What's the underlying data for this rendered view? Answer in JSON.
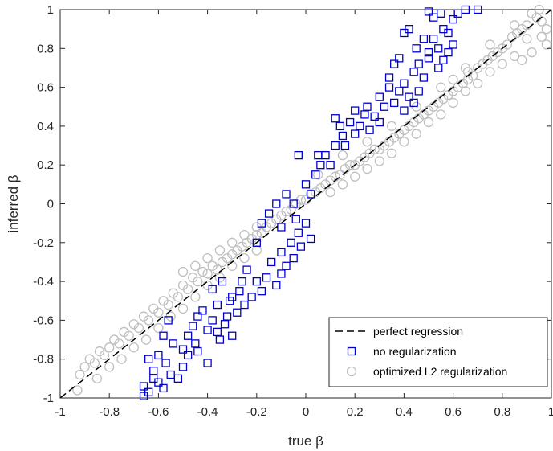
{
  "chart_data": {
    "type": "scatter",
    "xlabel": "true β",
    "ylabel": "inferred β",
    "xlim": [
      -1,
      1
    ],
    "ylim": [
      -1,
      1
    ],
    "xticks": [
      "-1",
      "-0.8",
      "-0.6",
      "-0.4",
      "-0.2",
      "0",
      "0.2",
      "0.4",
      "0.6",
      "0.8",
      "1"
    ],
    "yticks": [
      "-1",
      "-0.8",
      "-0.6",
      "-0.4",
      "-0.2",
      "0",
      "0.2",
      "0.4",
      "0.6",
      "0.8",
      "1"
    ],
    "grid": false,
    "legend_position": "bottom-right",
    "colors": {
      "none": "#0000cc",
      "l2": "#bfbfbf",
      "line": "#000000"
    },
    "series": [
      {
        "name": "perfect regression",
        "type": "line",
        "style": "dashed",
        "points": [
          [
            -1,
            -1
          ],
          [
            1,
            1
          ]
        ]
      },
      {
        "name": "no regularization",
        "marker": "square",
        "points": [
          [
            -0.66,
            -0.99
          ],
          [
            -0.64,
            -0.97
          ],
          [
            -0.6,
            -0.92
          ],
          [
            -0.62,
            -0.86
          ],
          [
            -0.58,
            -0.95
          ],
          [
            -0.55,
            -0.88
          ],
          [
            -0.64,
            -0.8
          ],
          [
            -0.6,
            -0.78
          ],
          [
            -0.57,
            -0.82
          ],
          [
            -0.52,
            -0.9
          ],
          [
            -0.5,
            -0.75
          ],
          [
            -0.48,
            -0.68
          ],
          [
            -0.45,
            -0.72
          ],
          [
            -0.46,
            -0.63
          ],
          [
            -0.44,
            -0.58
          ],
          [
            -0.42,
            -0.55
          ],
          [
            -0.4,
            -0.65
          ],
          [
            -0.38,
            -0.6
          ],
          [
            -0.36,
            -0.52
          ],
          [
            -0.35,
            -0.7
          ],
          [
            -0.33,
            -0.62
          ],
          [
            -0.31,
            -0.5
          ],
          [
            -0.3,
            -0.68
          ],
          [
            -0.28,
            -0.56
          ],
          [
            -0.27,
            -0.45
          ],
          [
            -0.25,
            -0.52
          ],
          [
            -0.22,
            -0.48
          ],
          [
            -0.2,
            -0.4
          ],
          [
            -0.18,
            -0.45
          ],
          [
            -0.16,
            -0.38
          ],
          [
            -0.14,
            -0.3
          ],
          [
            -0.12,
            -0.42
          ],
          [
            -0.1,
            -0.25
          ],
          [
            -0.08,
            -0.32
          ],
          [
            -0.06,
            -0.2
          ],
          [
            -0.05,
            -0.28
          ],
          [
            -0.03,
            -0.15
          ],
          [
            -0.02,
            -0.22
          ],
          [
            0,
            -0.1
          ],
          [
            -0.2,
            -0.2
          ],
          [
            -0.18,
            -0.1
          ],
          [
            -0.15,
            -0.05
          ],
          [
            -0.12,
            0
          ],
          [
            -0.1,
            -0.12
          ],
          [
            -0.08,
            0.05
          ],
          [
            -0.05,
            0
          ],
          [
            -0.04,
            -0.08
          ],
          [
            0,
            0.1
          ],
          [
            0.02,
            0.05
          ],
          [
            0.04,
            0.15
          ],
          [
            0.06,
            0.2
          ],
          [
            0.08,
            0.25
          ],
          [
            -0.03,
            0.25
          ],
          [
            0.05,
            0.25
          ],
          [
            0.1,
            0.2
          ],
          [
            0.12,
            0.3
          ],
          [
            0.15,
            0.35
          ],
          [
            0.18,
            0.42
          ],
          [
            0.2,
            0.48
          ],
          [
            0.22,
            0.4
          ],
          [
            0.25,
            0.5
          ],
          [
            0.28,
            0.45
          ],
          [
            0.3,
            0.55
          ],
          [
            0.32,
            0.5
          ],
          [
            0.34,
            0.6
          ],
          [
            0.36,
            0.52
          ],
          [
            0.38,
            0.58
          ],
          [
            0.4,
            0.62
          ],
          [
            0.42,
            0.55
          ],
          [
            0.44,
            0.68
          ],
          [
            0.46,
            0.72
          ],
          [
            0.48,
            0.65
          ],
          [
            0.5,
            0.78
          ],
          [
            0.52,
            0.85
          ],
          [
            0.54,
            0.8
          ],
          [
            0.56,
            0.9
          ],
          [
            0.58,
            0.88
          ],
          [
            0.6,
            0.95
          ],
          [
            0.62,
            0.98
          ],
          [
            0.55,
            0.98
          ],
          [
            0.5,
            0.99
          ],
          [
            0.52,
            0.96
          ],
          [
            0.65,
            1
          ],
          [
            0.7,
            1
          ],
          [
            0.45,
            0.8
          ],
          [
            0.4,
            0.88
          ],
          [
            0.38,
            0.75
          ],
          [
            0.42,
            0.9
          ],
          [
            0.48,
            0.85
          ],
          [
            0.36,
            0.72
          ],
          [
            0.34,
            0.65
          ],
          [
            0.58,
            0.78
          ],
          [
            0.6,
            0.82
          ],
          [
            0.56,
            0.74
          ],
          [
            0.54,
            0.7
          ],
          [
            0.5,
            0.75
          ],
          [
            0.46,
            0.58
          ],
          [
            0.44,
            0.52
          ],
          [
            0.4,
            0.48
          ],
          [
            0.3,
            0.42
          ],
          [
            0.26,
            0.38
          ],
          [
            0.24,
            0.46
          ],
          [
            0.2,
            0.36
          ],
          [
            0.16,
            0.3
          ],
          [
            0.14,
            0.4
          ],
          [
            0.12,
            0.44
          ],
          [
            -0.4,
            -0.82
          ],
          [
            -0.44,
            -0.76
          ],
          [
            -0.48,
            -0.78
          ],
          [
            -0.36,
            -0.66
          ],
          [
            -0.32,
            -0.58
          ],
          [
            -0.3,
            -0.48
          ],
          [
            -0.26,
            -0.4
          ],
          [
            -0.24,
            -0.34
          ],
          [
            -0.1,
            -0.36
          ],
          [
            0.02,
            -0.18
          ],
          [
            -0.38,
            -0.44
          ],
          [
            -0.34,
            -0.4
          ],
          [
            -0.56,
            -0.6
          ],
          [
            -0.58,
            -0.68
          ],
          [
            -0.54,
            -0.72
          ],
          [
            -0.62,
            -0.9
          ],
          [
            -0.5,
            -0.84
          ],
          [
            -0.66,
            -0.94
          ]
        ]
      },
      {
        "name": "optimized L2 regularization",
        "marker": "circle",
        "points": [
          [
            -0.93,
            -0.96
          ],
          [
            -0.92,
            -0.88
          ],
          [
            -0.9,
            -0.84
          ],
          [
            -0.88,
            -0.8
          ],
          [
            -0.86,
            -0.82
          ],
          [
            -0.84,
            -0.76
          ],
          [
            -0.82,
            -0.78
          ],
          [
            -0.8,
            -0.74
          ],
          [
            -0.78,
            -0.7
          ],
          [
            -0.76,
            -0.72
          ],
          [
            -0.74,
            -0.66
          ],
          [
            -0.72,
            -0.68
          ],
          [
            -0.7,
            -0.62
          ],
          [
            -0.68,
            -0.64
          ],
          [
            -0.66,
            -0.58
          ],
          [
            -0.64,
            -0.6
          ],
          [
            -0.62,
            -0.54
          ],
          [
            -0.6,
            -0.56
          ],
          [
            -0.58,
            -0.5
          ],
          [
            -0.56,
            -0.52
          ],
          [
            -0.54,
            -0.46
          ],
          [
            -0.52,
            -0.48
          ],
          [
            -0.5,
            -0.42
          ],
          [
            -0.48,
            -0.44
          ],
          [
            -0.46,
            -0.38
          ],
          [
            -0.44,
            -0.4
          ],
          [
            -0.42,
            -0.35
          ],
          [
            -0.4,
            -0.36
          ],
          [
            -0.38,
            -0.32
          ],
          [
            -0.36,
            -0.34
          ],
          [
            -0.34,
            -0.3
          ],
          [
            -0.32,
            -0.28
          ],
          [
            -0.3,
            -0.26
          ],
          [
            -0.28,
            -0.24
          ],
          [
            -0.26,
            -0.22
          ],
          [
            -0.24,
            -0.2
          ],
          [
            -0.22,
            -0.18
          ],
          [
            -0.2,
            -0.16
          ],
          [
            -0.18,
            -0.15
          ],
          [
            -0.16,
            -0.12
          ],
          [
            -0.14,
            -0.1
          ],
          [
            -0.12,
            -0.08
          ],
          [
            -0.1,
            -0.06
          ],
          [
            -0.08,
            -0.04
          ],
          [
            -0.06,
            -0.03
          ],
          [
            -0.04,
            0
          ],
          [
            -0.02,
            0.02
          ],
          [
            0,
            0.02
          ],
          [
            0.02,
            0.05
          ],
          [
            0.04,
            0.06
          ],
          [
            0.06,
            0.08
          ],
          [
            0.08,
            0.1
          ],
          [
            0.1,
            0.12
          ],
          [
            0.12,
            0.14
          ],
          [
            0.14,
            0.15
          ],
          [
            0.16,
            0.18
          ],
          [
            0.18,
            0.2
          ],
          [
            0.2,
            0.2
          ],
          [
            0.22,
            0.22
          ],
          [
            0.24,
            0.24
          ],
          [
            0.26,
            0.26
          ],
          [
            0.28,
            0.28
          ],
          [
            0.3,
            0.28
          ],
          [
            0.32,
            0.3
          ],
          [
            0.34,
            0.32
          ],
          [
            0.36,
            0.34
          ],
          [
            0.38,
            0.36
          ],
          [
            0.4,
            0.38
          ],
          [
            0.42,
            0.4
          ],
          [
            0.44,
            0.42
          ],
          [
            0.46,
            0.44
          ],
          [
            0.48,
            0.46
          ],
          [
            0.5,
            0.48
          ],
          [
            0.52,
            0.5
          ],
          [
            0.54,
            0.52
          ],
          [
            0.56,
            0.54
          ],
          [
            0.58,
            0.56
          ],
          [
            0.6,
            0.58
          ],
          [
            0.62,
            0.6
          ],
          [
            0.64,
            0.62
          ],
          [
            0.66,
            0.64
          ],
          [
            0.68,
            0.66
          ],
          [
            0.7,
            0.7
          ],
          [
            0.72,
            0.72
          ],
          [
            0.74,
            0.74
          ],
          [
            0.76,
            0.76
          ],
          [
            0.78,
            0.78
          ],
          [
            0.8,
            0.8
          ],
          [
            0.82,
            0.82
          ],
          [
            0.84,
            0.86
          ],
          [
            0.86,
            0.88
          ],
          [
            0.88,
            0.9
          ],
          [
            0.9,
            0.92
          ],
          [
            0.92,
            0.98
          ],
          [
            0.94,
            0.96
          ],
          [
            0.96,
            0.94
          ],
          [
            0.98,
            0.9
          ],
          [
            0.9,
            0.85
          ],
          [
            0.85,
            0.76
          ],
          [
            0.8,
            0.72
          ],
          [
            0.75,
            0.68
          ],
          [
            0.7,
            0.62
          ],
          [
            0.65,
            0.58
          ],
          [
            0.6,
            0.52
          ],
          [
            0.55,
            0.46
          ],
          [
            0.5,
            0.42
          ],
          [
            0.45,
            0.36
          ],
          [
            0.4,
            0.32
          ],
          [
            0.35,
            0.26
          ],
          [
            0.3,
            0.22
          ],
          [
            0.25,
            0.18
          ],
          [
            0.2,
            0.14
          ],
          [
            0.15,
            0.1
          ],
          [
            0.1,
            0.06
          ],
          [
            -0.85,
            -0.9
          ],
          [
            -0.8,
            -0.84
          ],
          [
            -0.75,
            -0.8
          ],
          [
            -0.7,
            -0.74
          ],
          [
            -0.65,
            -0.7
          ],
          [
            -0.6,
            -0.64
          ],
          [
            -0.55,
            -0.58
          ],
          [
            -0.5,
            -0.54
          ],
          [
            -0.45,
            -0.48
          ],
          [
            -0.4,
            -0.42
          ],
          [
            -0.35,
            -0.38
          ],
          [
            -0.3,
            -0.32
          ],
          [
            -0.25,
            -0.28
          ],
          [
            -0.2,
            -0.24
          ],
          [
            -0.5,
            -0.35
          ],
          [
            -0.45,
            -0.32
          ],
          [
            -0.4,
            -0.28
          ],
          [
            -0.35,
            -0.24
          ],
          [
            -0.3,
            -0.2
          ],
          [
            -0.25,
            -0.16
          ],
          [
            -0.2,
            -0.12
          ],
          [
            0.05,
            0.15
          ],
          [
            0.15,
            0.25
          ],
          [
            0.25,
            0.32
          ],
          [
            0.35,
            0.4
          ],
          [
            0.45,
            0.5
          ],
          [
            0.55,
            0.6
          ],
          [
            0.65,
            0.7
          ],
          [
            0.75,
            0.82
          ],
          [
            0.85,
            0.92
          ],
          [
            0.95,
            1
          ],
          [
            0.96,
            0.86
          ],
          [
            0.98,
            0.82
          ],
          [
            0.92,
            0.78
          ],
          [
            0.88,
            0.74
          ],
          [
            0.6,
            0.64
          ],
          [
            0.66,
            0.68
          ]
        ]
      }
    ]
  }
}
